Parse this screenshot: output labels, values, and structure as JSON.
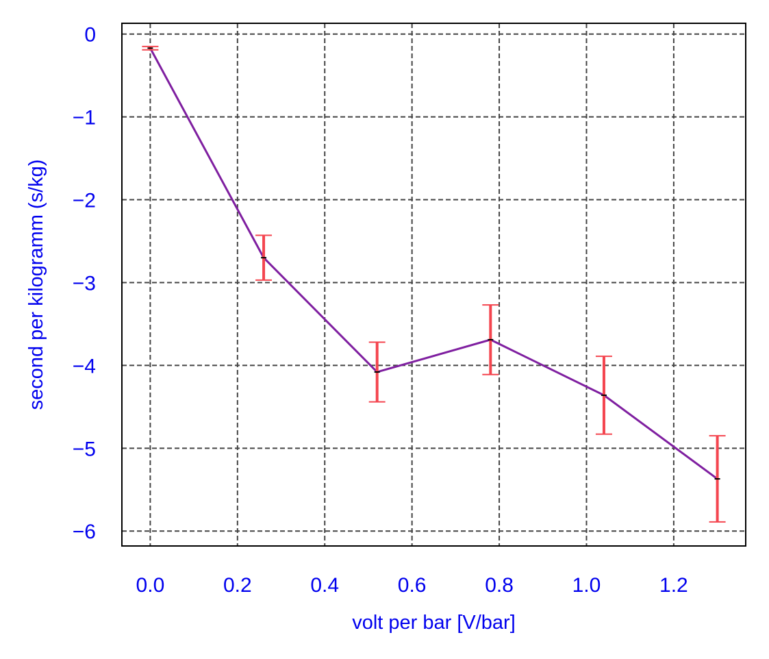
{
  "chart_data": {
    "type": "line",
    "title": "",
    "xlabel": "volt per bar [V/bar]",
    "ylabel": "second per kilogramm (s/kg)",
    "xlim": [
      -0.065,
      1.365
    ],
    "ylim": [
      -6.18,
      0.13
    ],
    "x_ticks": [
      0.0,
      0.2,
      0.4,
      0.6,
      0.8,
      1.0,
      1.2
    ],
    "x_tick_labels": [
      "0.0",
      "0.2",
      "0.4",
      "0.6",
      "0.8",
      "1.0",
      "1.2"
    ],
    "y_ticks": [
      0,
      -1,
      -2,
      -3,
      -4,
      -5,
      -6
    ],
    "y_tick_labels": [
      "0",
      "−1",
      "−2",
      "−3",
      "−4",
      "−5",
      "−6"
    ],
    "grid": true,
    "legend": "none",
    "series": [
      {
        "x": [
          0.0,
          0.26,
          0.52,
          0.78,
          1.04,
          1.3
        ],
        "y": [
          -0.17,
          -2.7,
          -4.08,
          -3.69,
          -4.36,
          -5.37
        ],
        "yerr": [
          0.02,
          0.27,
          0.36,
          0.42,
          0.47,
          0.52
        ],
        "line_color": "#7f1fa0",
        "errorbar_color": "#f4454f",
        "marker_color": "#000000"
      }
    ],
    "colors": {
      "tick_text": "#0000ee",
      "label_text": "#0000ee",
      "grid": "#444444",
      "frame": "#000000"
    }
  }
}
